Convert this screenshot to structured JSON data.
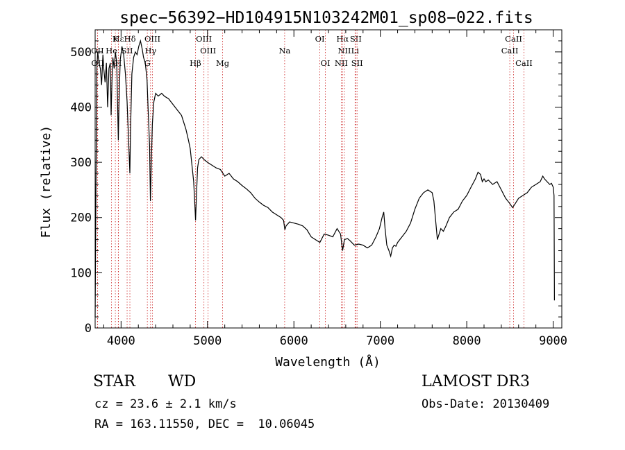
{
  "chart_data": {
    "type": "line",
    "title": "spec−56392−HD104915N103242M01_sp08−022.fits",
    "xlabel": "Wavelength (Å)",
    "ylabel": "Flux (relative)",
    "xlim": [
      3700,
      9100
    ],
    "ylim": [
      0,
      540
    ],
    "xticks": [
      4000,
      5000,
      6000,
      7000,
      8000,
      9000
    ],
    "xtick_labels": [
      "4000",
      "5000",
      "6000",
      "7000",
      "8000",
      "9000"
    ],
    "yticks": [
      0,
      100,
      200,
      300,
      400,
      500
    ],
    "ytick_labels": [
      "0",
      "100",
      "200",
      "300",
      "400",
      "500"
    ],
    "grid": false,
    "series": [
      {
        "name": "spectrum",
        "color": "#000000",
        "points": [
          [
            3700,
            20
          ],
          [
            3710,
            260
          ],
          [
            3720,
            470
          ],
          [
            3730,
            500
          ],
          [
            3745,
            480
          ],
          [
            3760,
            470
          ],
          [
            3775,
            440
          ],
          [
            3790,
            495
          ],
          [
            3800,
            470
          ],
          [
            3815,
            445
          ],
          [
            3830,
            480
          ],
          [
            3845,
            400
          ],
          [
            3860,
            470
          ],
          [
            3875,
            480
          ],
          [
            3885,
            385
          ],
          [
            3895,
            450
          ],
          [
            3905,
            490
          ],
          [
            3920,
            470
          ],
          [
            3935,
            500
          ],
          [
            3950,
            480
          ],
          [
            3960,
            400
          ],
          [
            3968,
            340
          ],
          [
            3975,
            400
          ],
          [
            3990,
            485
          ],
          [
            4010,
            510
          ],
          [
            4030,
            495
          ],
          [
            4050,
            460
          ],
          [
            4070,
            410
          ],
          [
            4090,
            330
          ],
          [
            4102,
            280
          ],
          [
            4110,
            360
          ],
          [
            4125,
            460
          ],
          [
            4145,
            490
          ],
          [
            4165,
            500
          ],
          [
            4185,
            495
          ],
          [
            4205,
            510
          ],
          [
            4225,
            520
          ],
          [
            4245,
            505
          ],
          [
            4260,
            490
          ],
          [
            4280,
            480
          ],
          [
            4300,
            450
          ],
          [
            4315,
            390
          ],
          [
            4330,
            330
          ],
          [
            4340,
            230
          ],
          [
            4350,
            300
          ],
          [
            4362,
            370
          ],
          [
            4380,
            410
          ],
          [
            4400,
            425
          ],
          [
            4430,
            420
          ],
          [
            4470,
            425
          ],
          [
            4500,
            420
          ],
          [
            4550,
            415
          ],
          [
            4600,
            405
          ],
          [
            4650,
            395
          ],
          [
            4700,
            385
          ],
          [
            4750,
            360
          ],
          [
            4780,
            340
          ],
          [
            4800,
            325
          ],
          [
            4820,
            295
          ],
          [
            4840,
            265
          ],
          [
            4855,
            220
          ],
          [
            4862,
            195
          ],
          [
            4870,
            230
          ],
          [
            4885,
            290
          ],
          [
            4900,
            305
          ],
          [
            4930,
            310
          ],
          [
            4960,
            305
          ],
          [
            5000,
            300
          ],
          [
            5050,
            295
          ],
          [
            5100,
            290
          ],
          [
            5150,
            287
          ],
          [
            5200,
            275
          ],
          [
            5250,
            280
          ],
          [
            5300,
            270
          ],
          [
            5350,
            265
          ],
          [
            5400,
            258
          ],
          [
            5450,
            252
          ],
          [
            5500,
            245
          ],
          [
            5550,
            235
          ],
          [
            5600,
            228
          ],
          [
            5650,
            222
          ],
          [
            5700,
            218
          ],
          [
            5750,
            210
          ],
          [
            5800,
            205
          ],
          [
            5850,
            200
          ],
          [
            5880,
            195
          ],
          [
            5895,
            178
          ],
          [
            5910,
            185
          ],
          [
            5950,
            192
          ],
          [
            6000,
            190
          ],
          [
            6050,
            188
          ],
          [
            6100,
            185
          ],
          [
            6150,
            178
          ],
          [
            6200,
            165
          ],
          [
            6250,
            160
          ],
          [
            6300,
            155
          ],
          [
            6350,
            170
          ],
          [
            6400,
            168
          ],
          [
            6450,
            165
          ],
          [
            6500,
            180
          ],
          [
            6540,
            170
          ],
          [
            6563,
            140
          ],
          [
            6585,
            160
          ],
          [
            6620,
            162
          ],
          [
            6650,
            158
          ],
          [
            6700,
            150
          ],
          [
            6750,
            152
          ],
          [
            6800,
            150
          ],
          [
            6850,
            145
          ],
          [
            6900,
            150
          ],
          [
            6950,
            165
          ],
          [
            6990,
            180
          ],
          [
            7020,
            200
          ],
          [
            7040,
            210
          ],
          [
            7055,
            180
          ],
          [
            7075,
            150
          ],
          [
            7100,
            140
          ],
          [
            7120,
            130
          ],
          [
            7140,
            145
          ],
          [
            7160,
            150
          ],
          [
            7180,
            148
          ],
          [
            7200,
            155
          ],
          [
            7250,
            165
          ],
          [
            7300,
            175
          ],
          [
            7350,
            190
          ],
          [
            7400,
            215
          ],
          [
            7450,
            235
          ],
          [
            7500,
            245
          ],
          [
            7550,
            250
          ],
          [
            7600,
            245
          ],
          [
            7620,
            230
          ],
          [
            7640,
            195
          ],
          [
            7660,
            160
          ],
          [
            7680,
            170
          ],
          [
            7700,
            180
          ],
          [
            7730,
            175
          ],
          [
            7760,
            185
          ],
          [
            7800,
            200
          ],
          [
            7850,
            210
          ],
          [
            7900,
            215
          ],
          [
            7950,
            230
          ],
          [
            8000,
            240
          ],
          [
            8050,
            255
          ],
          [
            8100,
            270
          ],
          [
            8130,
            282
          ],
          [
            8160,
            278
          ],
          [
            8180,
            265
          ],
          [
            8200,
            270
          ],
          [
            8220,
            265
          ],
          [
            8250,
            268
          ],
          [
            8300,
            260
          ],
          [
            8350,
            265
          ],
          [
            8400,
            250
          ],
          [
            8450,
            235
          ],
          [
            8500,
            225
          ],
          [
            8530,
            218
          ],
          [
            8560,
            225
          ],
          [
            8600,
            235
          ],
          [
            8650,
            240
          ],
          [
            8700,
            245
          ],
          [
            8750,
            255
          ],
          [
            8800,
            260
          ],
          [
            8850,
            265
          ],
          [
            8880,
            275
          ],
          [
            8900,
            270
          ],
          [
            8930,
            265
          ],
          [
            8960,
            260
          ],
          [
            8980,
            262
          ],
          [
            9000,
            255
          ],
          [
            9010,
            240
          ],
          [
            9015,
            50
          ]
        ]
      }
    ],
    "line_markers": [
      {
        "label": "Hε",
        "wavelength": 3970,
        "row": 1
      },
      {
        "label": "K",
        "wavelength": 3934,
        "row": 1
      },
      {
        "label": "Hδ",
        "wavelength": 4102,
        "row": 1
      },
      {
        "label": "OIII",
        "wavelength": 4363,
        "row": 1
      },
      {
        "label": "OIII",
        "wavelength": 4959,
        "row": 1
      },
      {
        "label": "OI",
        "wavelength": 6300,
        "row": 1
      },
      {
        "label": "Hα",
        "wavelength": 6563,
        "row": 1
      },
      {
        "label": "SII",
        "wavelength": 6716,
        "row": 1
      },
      {
        "label": "CaII",
        "wavelength": 8542,
        "row": 1
      },
      {
        "label": "OII",
        "wavelength": 3727,
        "row": 2
      },
      {
        "label": "He",
        "wavelength": 3889,
        "row": 2
      },
      {
        "label": "SII",
        "wavelength": 4070,
        "row": 2
      },
      {
        "label": "Hγ",
        "wavelength": 4341,
        "row": 2
      },
      {
        "label": "OIII",
        "wavelength": 5007,
        "row": 2
      },
      {
        "label": "Na",
        "wavelength": 5893,
        "row": 2
      },
      {
        "label": "NII",
        "wavelength": 6584,
        "row": 2
      },
      {
        "label": "Li",
        "wavelength": 6708,
        "row": 2
      },
      {
        "label": "CaII",
        "wavelength": 8498,
        "row": 2
      },
      {
        "label": "OII",
        "wavelength": 3729,
        "row": 3
      },
      {
        "label": "H",
        "wavelength": 3968,
        "row": 3
      },
      {
        "label": "G",
        "wavelength": 4304,
        "row": 3
      },
      {
        "label": "Hβ",
        "wavelength": 4861,
        "row": 3
      },
      {
        "label": "Mg",
        "wavelength": 5175,
        "row": 3
      },
      {
        "label": "OI",
        "wavelength": 6364,
        "row": 3
      },
      {
        "label": "NII",
        "wavelength": 6548,
        "row": 3
      },
      {
        "label": "SII",
        "wavelength": 6731,
        "row": 3
      },
      {
        "label": "CaII",
        "wavelength": 8662,
        "row": 3
      }
    ]
  },
  "info": {
    "object_class": "STAR",
    "object_subclass": "WD",
    "survey": "LAMOST DR3",
    "cz_text": "cz = 23.6 ± 2.1 km/s",
    "obs_date_text": "Obs-Date: 20130409",
    "radec_text": "RA = 163.11550, DEC =  10.06045"
  }
}
